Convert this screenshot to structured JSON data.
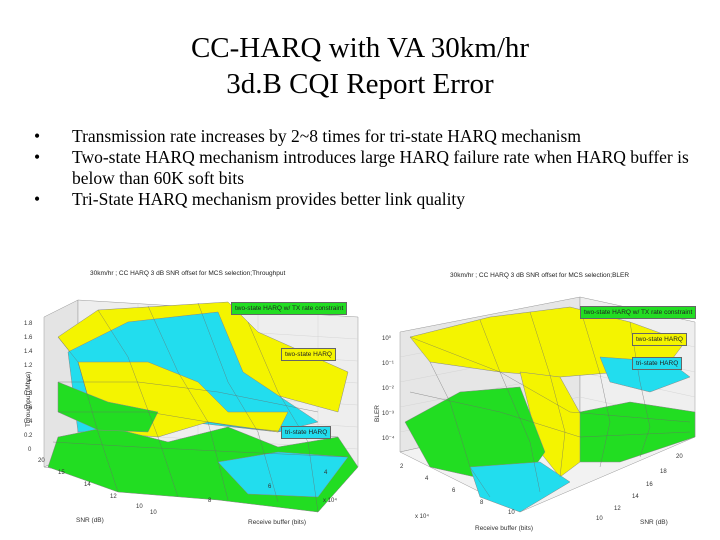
{
  "title": {
    "line1": "CC-HARQ with VA 30km/hr",
    "line2": "3d.B CQI Report Error"
  },
  "bullets": [
    "Transmission rate increases by 2~8 times for tri-state HARQ mechanism",
    "Two-state HARQ mechanism introduces large HARQ failure rate when HARQ buffer is below than 60K soft bits",
    "Tri-State HARQ mechanism provides better link quality"
  ],
  "bullet_glyph": "•",
  "colors": {
    "yellow": "#f4f400",
    "green": "#22dd22",
    "cyan": "#22ddee",
    "back": "#e8e8e8"
  },
  "left_chart": {
    "title": "30km/hr ; CC HARQ 3 dB SNR offset for MCS selection;Throughput",
    "ylabel": "Throughput (Mbps)",
    "yticks": [
      "1.4",
      "1.2",
      "1",
      "0.8",
      "0.6",
      "0.4",
      "0.2",
      "0"
    ],
    "yticks_top": [
      "1.6",
      "1.8"
    ],
    "snr_label": "SNR (dB)",
    "snr_ticks": [
      "20",
      "15",
      "14",
      "12",
      "10"
    ],
    "buffer_label": "Receive buffer (bits)",
    "buffer_ticks": [
      "10",
      "8",
      "6",
      "4"
    ],
    "buffer_exp": "x 10⁴",
    "legend": [
      "two-state HARQ w/ TX rate constraint",
      "two-state HARQ",
      "tri-state HARQ"
    ]
  },
  "right_chart": {
    "title": "30km/hr ; CC HARQ 3 dB SNR offset for MCS selection;BLER",
    "ylabel": "BLER",
    "yticks": [
      "10⁰",
      "10⁻¹",
      "10⁻²",
      "10⁻³",
      "10⁻⁴"
    ],
    "snr_label": "SNR (dB)",
    "snr_ticks": [
      "20",
      "18",
      "16",
      "14",
      "12",
      "10"
    ],
    "buffer_label": "Receive buffer (bits)",
    "buffer_ticks": [
      "2",
      "4",
      "6",
      "8",
      "10"
    ],
    "buffer_exp": "x 10⁴",
    "legend": [
      "two-state HARQ w/ TX rate constraint",
      "two-state HARQ",
      "tri-state HARQ"
    ]
  }
}
